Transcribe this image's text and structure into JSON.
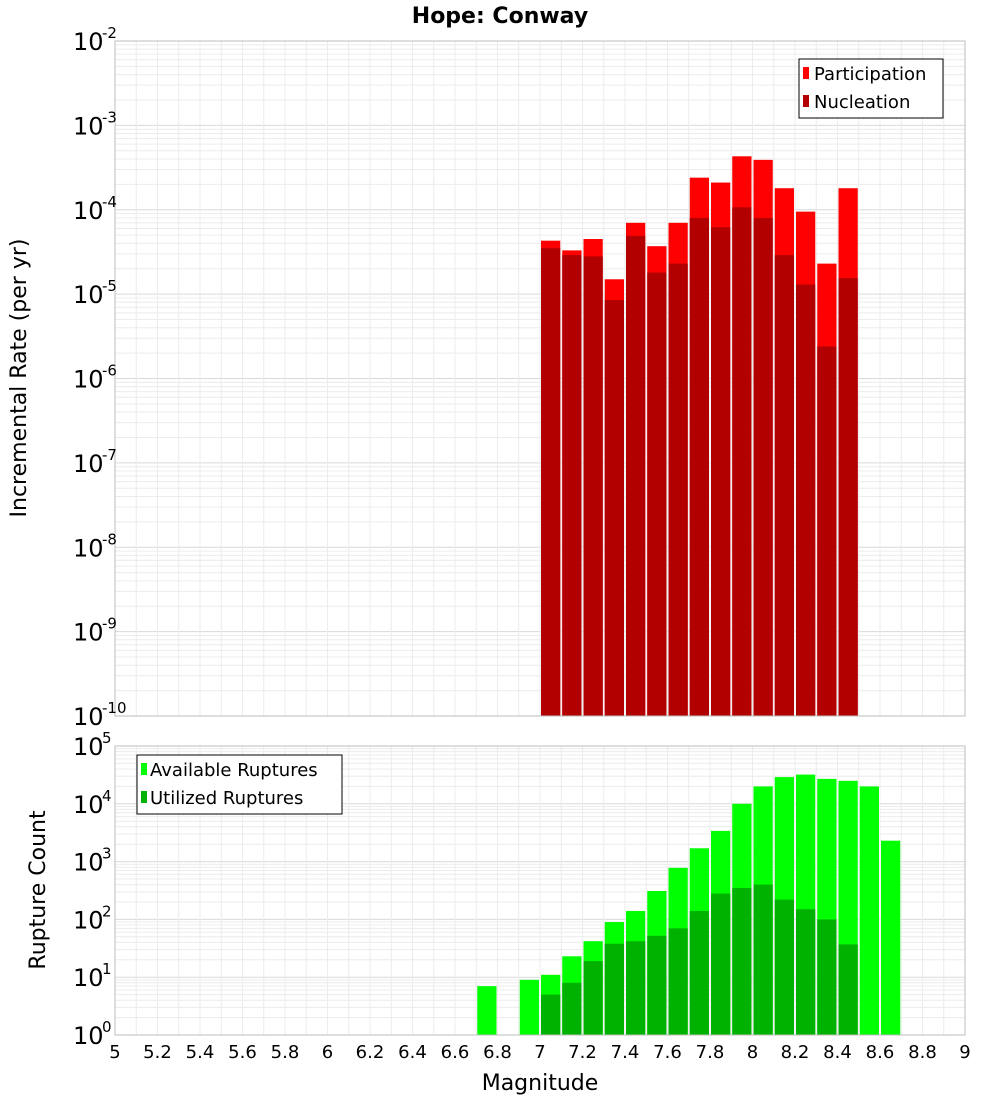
{
  "chart_data": [
    {
      "type": "bar",
      "title": "Hope: Conway",
      "xlabel": "",
      "ylabel": "Incremental Rate (per yr)",
      "yscale": "log",
      "ylim": [
        1e-10,
        0.01
      ],
      "ytick_exponents": [
        "-10",
        "-9",
        "-8",
        "-7",
        "-6",
        "-5",
        "-4",
        "-3",
        "-2"
      ],
      "xlim": [
        5,
        9
      ],
      "legend_position": "top-right",
      "x": [
        7.05,
        7.15,
        7.25,
        7.35,
        7.45,
        7.55,
        7.65,
        7.75,
        7.85,
        7.95,
        8.05,
        8.15,
        8.25,
        8.35,
        8.45
      ],
      "series": [
        {
          "name": "Participation",
          "color": "#ff0000",
          "values": [
            4.3e-05,
            3.3e-05,
            4.5e-05,
            1.5e-05,
            7e-05,
            3.7e-05,
            7e-05,
            0.00024,
            0.00021,
            0.00043,
            0.00039,
            0.00018,
            9.5e-05,
            2.3e-05,
            0.00018
          ]
        },
        {
          "name": "Nucleation",
          "color": "#b20000",
          "values": [
            3.5e-05,
            2.9e-05,
            2.8e-05,
            8.5e-06,
            4.9e-05,
            1.8e-05,
            2.3e-05,
            8e-05,
            6.2e-05,
            0.000107,
            8e-05,
            2.9e-05,
            1.3e-05,
            2.4e-06,
            1.55e-05
          ]
        }
      ]
    },
    {
      "type": "bar",
      "xlabel": "Magnitude",
      "ylabel": "Rupture Count",
      "yscale": "log",
      "ylim": [
        1,
        100000
      ],
      "ytick_exponents": [
        "0",
        "1",
        "2",
        "3",
        "4",
        "5"
      ],
      "xlim": [
        5,
        9
      ],
      "xticks": [
        "5",
        "5.2",
        "5.4",
        "5.6",
        "5.8",
        "6",
        "6.2",
        "6.4",
        "6.6",
        "6.8",
        "7",
        "7.2",
        "7.4",
        "7.6",
        "7.8",
        "8",
        "8.2",
        "8.4",
        "8.6",
        "8.8",
        "9"
      ],
      "legend_position": "top-left",
      "series": [
        {
          "name": "Available Ruptures",
          "color": "#00ff00",
          "x": [
            6.75,
            6.95,
            7.05,
            7.15,
            7.25,
            7.35,
            7.45,
            7.55,
            7.65,
            7.75,
            7.85,
            7.95,
            8.05,
            8.15,
            8.25,
            8.35,
            8.45,
            8.55,
            8.65
          ],
          "values": [
            7,
            9,
            11,
            23,
            42,
            90,
            140,
            310,
            780,
            1700,
            3400,
            10000,
            20000,
            29000,
            32000,
            27000,
            25000,
            20000,
            2300
          ]
        },
        {
          "name": "Utilized Ruptures",
          "color": "#00b200",
          "x": [
            7.05,
            7.15,
            7.25,
            7.35,
            7.45,
            7.55,
            7.65,
            7.75,
            7.85,
            7.95,
            8.05,
            8.15,
            8.25,
            8.35,
            8.45
          ],
          "values": [
            5,
            8,
            19,
            38,
            42,
            52,
            70,
            140,
            280,
            350,
            400,
            220,
            150,
            100,
            37
          ]
        }
      ]
    }
  ]
}
